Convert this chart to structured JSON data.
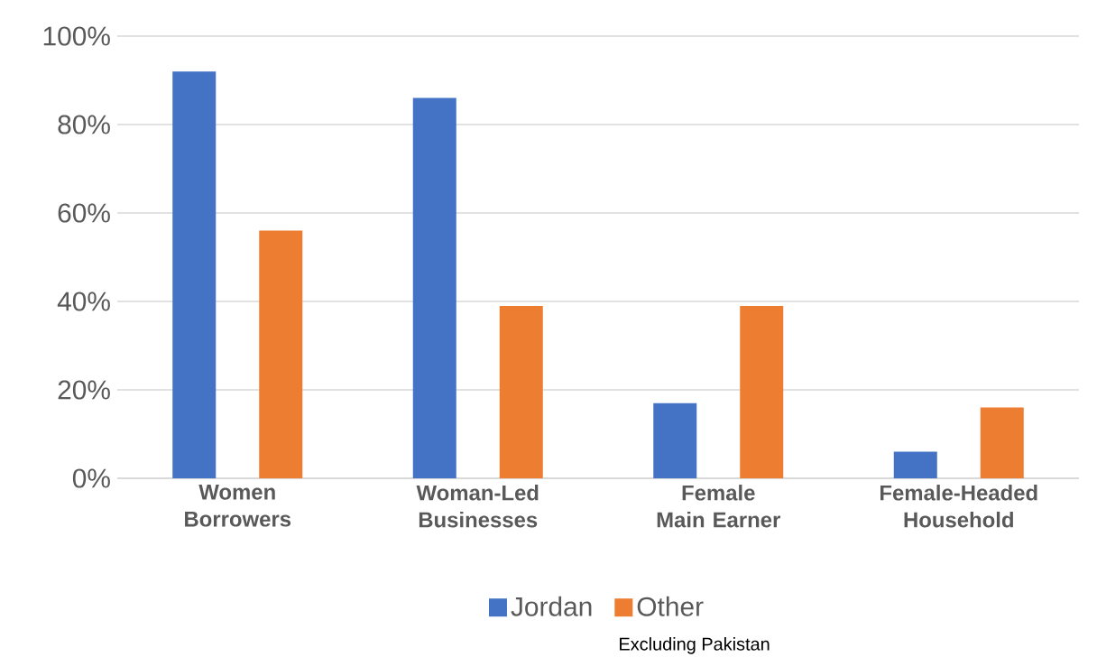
{
  "chart_data": {
    "type": "bar",
    "categories": [
      "Women Borrowers",
      "Woman-Led Businesses",
      "Female Main Earner",
      "Female-Headed Household"
    ],
    "series": [
      {
        "name": "Jordan",
        "color": "#4472c4",
        "values": [
          92,
          86,
          17,
          6
        ]
      },
      {
        "name": "Other",
        "color": "#ed7d31",
        "values": [
          56,
          39,
          39,
          16
        ]
      }
    ],
    "ylim": [
      0,
      100
    ],
    "yticks": [
      {
        "value": 0,
        "label": "0%"
      },
      {
        "value": 20,
        "label": "20%"
      },
      {
        "value": 40,
        "label": "40%"
      },
      {
        "value": 60,
        "label": "60%"
      },
      {
        "value": 80,
        "label": "80%"
      },
      {
        "value": 100,
        "label": "100%"
      }
    ],
    "grid": "y",
    "legend": "bottom",
    "annotations": [
      "Excluding Pakistan"
    ]
  }
}
